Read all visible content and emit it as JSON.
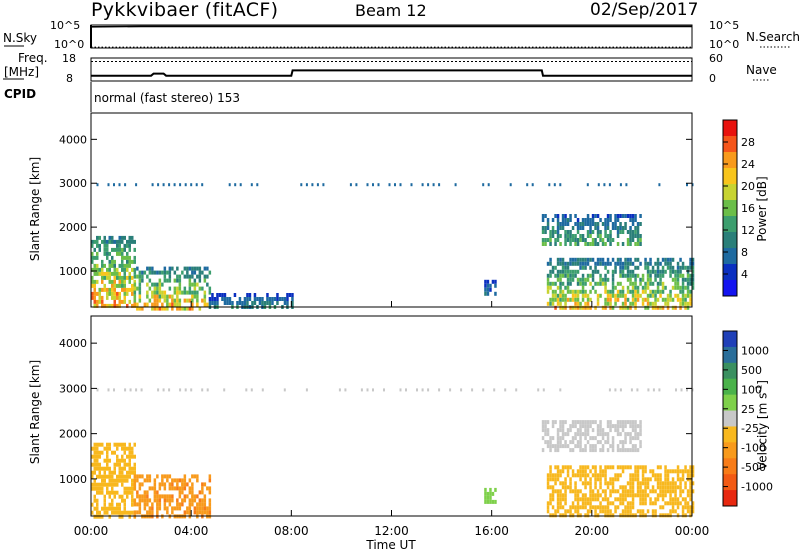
{
  "header": {
    "radar": "Pykkvibaer (fitACF)",
    "beam": "Beam 12",
    "date": "02/Sep/2017"
  },
  "strip1": {
    "left_label": "N.Sky",
    "right_label": "N.Search",
    "left_ticks": [
      "10^5",
      "10^0"
    ],
    "right_ticks": [
      "10^5",
      "10^0"
    ]
  },
  "strip2": {
    "left_label_top": "Freq.",
    "left_label_unit": "[MHz]",
    "right_label": "Nave",
    "left_ticks": [
      "18",
      "8"
    ],
    "right_ticks": [
      "60",
      "0"
    ]
  },
  "cpid": {
    "label": "CPID",
    "value": "normal (fast stereo) 153"
  },
  "time_axis": {
    "title": "Time UT",
    "ticks": [
      "00:00",
      "04:00",
      "08:00",
      "12:00",
      "16:00",
      "20:00",
      "00:00"
    ]
  },
  "chart_data": [
    {
      "type": "line",
      "title": "N.Sky / N.Search",
      "xlabel": "Time UT",
      "x_range_hours": [
        0,
        24
      ],
      "ylim_log10": [
        0,
        5
      ],
      "series": [
        {
          "name": "N.Sky",
          "x": [
            0,
            2,
            4,
            8,
            12,
            16,
            20,
            24
          ],
          "y_log10": [
            4.6,
            4.7,
            4.7,
            4.7,
            4.7,
            4.7,
            4.7,
            4.7
          ]
        },
        {
          "name": "N.Search",
          "x": [
            0,
            4,
            8,
            12,
            16,
            20,
            24
          ],
          "y_log10": [
            0.2,
            0.2,
            0.2,
            0.2,
            0.2,
            0.2,
            0.2
          ]
        }
      ]
    },
    {
      "type": "line",
      "title": "Freq. [MHz] / Nave",
      "xlabel": "Time UT",
      "x_range_hours": [
        0,
        24
      ],
      "ylim": [
        8,
        18
      ],
      "series": [
        {
          "name": "Freq.",
          "x": [
            0,
            2.4,
            2.5,
            2.9,
            3.0,
            8.0,
            8.05,
            18.0,
            18.05,
            24
          ],
          "y": [
            10.3,
            10.3,
            11.2,
            11.2,
            10.3,
            10.3,
            12.6,
            12.6,
            10.3,
            10.3
          ]
        },
        {
          "name": "Nave",
          "x": [
            0,
            24
          ],
          "y": [
            16.5,
            16.5
          ]
        }
      ]
    },
    {
      "type": "heatmap",
      "title": "Power [dB]",
      "xlabel": "Time UT",
      "ylabel": "Slant Range [km]",
      "x_range_hours": [
        0,
        24
      ],
      "ylim": [
        180,
        4600
      ],
      "y_ticks": [
        1000,
        2000,
        3000,
        4000
      ],
      "colorbar": {
        "label": "Power [dB]",
        "ticks": [
          "28",
          "24",
          "20",
          "16",
          "12",
          "8",
          "4"
        ],
        "colors": [
          "#e8120e",
          "#f5551a",
          "#f89a1c",
          "#f8c51c",
          "#c7d331",
          "#6bbe49",
          "#3c9e6e",
          "#2a7f79",
          "#1e6aa0",
          "#0a2fc0",
          "#1414f0"
        ]
      },
      "regions": [
        {
          "t": [
            0,
            1.7
          ],
          "r": [
            180,
            1800
          ],
          "peak_dB": 28
        },
        {
          "t": [
            1.7,
            4.7
          ],
          "r": [
            180,
            1100
          ],
          "peak_dB": 26
        },
        {
          "t": [
            4.7,
            8.0
          ],
          "r": [
            180,
            500
          ],
          "peak_dB": 12
        },
        {
          "t": [
            15.7,
            16.1
          ],
          "r": [
            450,
            800
          ],
          "peak_dB": 10
        },
        {
          "t": [
            18.0,
            21.9
          ],
          "r": [
            1600,
            2300
          ],
          "peak_dB": 16
        },
        {
          "t": [
            18.2,
            24
          ],
          "r": [
            180,
            1300
          ],
          "peak_dB": 24
        }
      ]
    },
    {
      "type": "heatmap",
      "title": "Velocity [m s^-1]",
      "xlabel": "Time UT",
      "ylabel": "Slant Range [km]",
      "x_range_hours": [
        0,
        24
      ],
      "ylim": [
        180,
        4600
      ],
      "y_ticks": [
        1000,
        2000,
        3000,
        4000
      ],
      "colorbar": {
        "label": "Velocity [m s",
        "label_sup": "-1",
        "label_end": "]",
        "ticks": [
          "1000",
          "500",
          "100",
          "25",
          "-25",
          "-100",
          "-500",
          "-1000"
        ],
        "colors": [
          "#2040b8",
          "#2a6e9a",
          "#3a9060",
          "#4ab24a",
          "#7ed04a",
          "#c8c8c8",
          "#f8b81e",
          "#f89a1c",
          "#f87c18",
          "#f25a14",
          "#e82810"
        ]
      },
      "regions": [
        {
          "t": [
            0,
            1.7
          ],
          "r": [
            180,
            1800
          ],
          "velocity": -100
        },
        {
          "t": [
            1.7,
            4.7
          ],
          "r": [
            180,
            1100
          ],
          "velocity": -300
        },
        {
          "t": [
            15.7,
            16.1
          ],
          "r": [
            450,
            800
          ],
          "velocity": 150
        },
        {
          "t": [
            18.0,
            21.9
          ],
          "r": [
            1600,
            2300
          ],
          "velocity": 0
        },
        {
          "t": [
            18.2,
            24
          ],
          "r": [
            180,
            1300
          ],
          "velocity": -60
        }
      ]
    }
  ]
}
